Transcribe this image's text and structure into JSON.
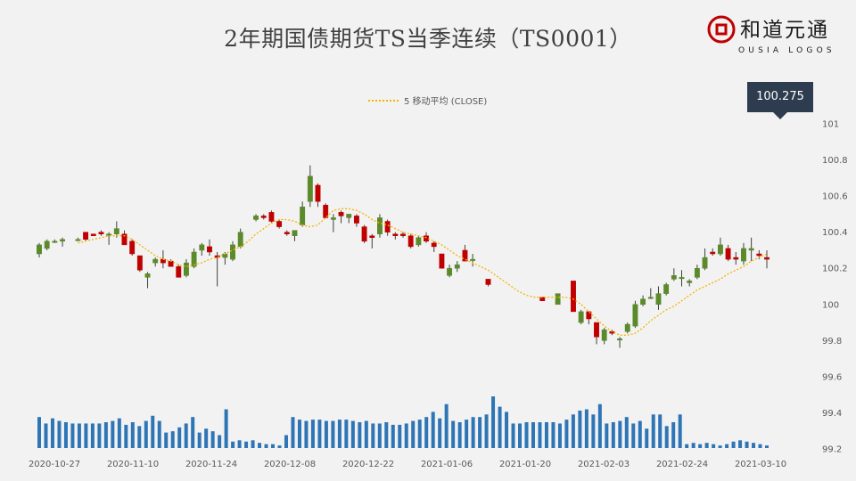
{
  "header": {
    "title": "2年期国债期货TS当季连续（TS0001）",
    "logo_text_cn": "和道元通",
    "logo_text_en": "OUSIA LOGOS"
  },
  "last_price": "100.275",
  "chart_data": {
    "type": "candlestick",
    "legend": [
      {
        "name": "5 移动平均 (CLOSE)",
        "color": "#f5b400",
        "style": "dotted"
      }
    ],
    "up_color": "#5a8a2a",
    "down_color": "#c00000",
    "volume_color": "#2e75b6",
    "yticks": [
      "101",
      "100.8",
      "100.6",
      "100.4",
      "100.2",
      "100",
      "99.8",
      "99.6",
      "99.4",
      "99.2"
    ],
    "ylim": [
      99.2,
      101
    ],
    "xticks": [
      "2020-10-27",
      "2020-11-10",
      "2020-11-24",
      "2020-12-08",
      "2020-12-22",
      "2021-01-06",
      "2021-01-20",
      "2021-02-03",
      "2021-02-24",
      "2021-03-10"
    ],
    "candles": [
      {
        "o": 100.28,
        "h": 100.34,
        "l": 100.26,
        "c": 100.33
      },
      {
        "o": 100.31,
        "h": 100.36,
        "l": 100.3,
        "c": 100.35
      },
      {
        "o": 100.35,
        "h": 100.36,
        "l": 100.34,
        "c": 100.35
      },
      {
        "o": 100.35,
        "h": 100.37,
        "l": 100.32,
        "c": 100.36
      },
      null,
      {
        "o": 100.36,
        "h": 100.37,
        "l": 100.35,
        "c": 100.36
      },
      {
        "o": 100.4,
        "h": 100.4,
        "l": 100.35,
        "c": 100.36
      },
      {
        "o": 100.39,
        "h": 100.39,
        "l": 100.38,
        "c": 100.38
      },
      {
        "o": 100.4,
        "h": 100.41,
        "l": 100.38,
        "c": 100.39
      },
      {
        "o": 100.39,
        "h": 100.4,
        "l": 100.33,
        "c": 100.39
      },
      {
        "o": 100.39,
        "h": 100.46,
        "l": 100.37,
        "c": 100.42
      },
      {
        "o": 100.39,
        "h": 100.41,
        "l": 100.33,
        "c": 100.33
      },
      {
        "o": 100.35,
        "h": 100.36,
        "l": 100.27,
        "c": 100.28
      },
      {
        "o": 100.27,
        "h": 100.27,
        "l": 100.18,
        "c": 100.19
      },
      {
        "o": 100.15,
        "h": 100.18,
        "l": 100.09,
        "c": 100.17
      },
      {
        "o": 100.23,
        "h": 100.26,
        "l": 100.21,
        "c": 100.25
      },
      {
        "o": 100.25,
        "h": 100.3,
        "l": 100.2,
        "c": 100.23
      },
      {
        "o": 100.24,
        "h": 100.25,
        "l": 100.21,
        "c": 100.21
      },
      {
        "o": 100.21,
        "h": 100.22,
        "l": 100.15,
        "c": 100.15
      },
      {
        "o": 100.16,
        "h": 100.25,
        "l": 100.15,
        "c": 100.23
      },
      {
        "o": 100.21,
        "h": 100.31,
        "l": 100.2,
        "c": 100.29
      },
      {
        "o": 100.3,
        "h": 100.34,
        "l": 100.27,
        "c": 100.33
      },
      {
        "o": 100.32,
        "h": 100.36,
        "l": 100.27,
        "c": 100.29
      },
      {
        "o": 100.27,
        "h": 100.29,
        "l": 100.1,
        "c": 100.26
      },
      {
        "o": 100.26,
        "h": 100.29,
        "l": 100.22,
        "c": 100.28
      },
      {
        "o": 100.25,
        "h": 100.35,
        "l": 100.24,
        "c": 100.33
      },
      {
        "o": 100.32,
        "h": 100.42,
        "l": 100.31,
        "c": 100.4
      },
      null,
      {
        "o": 100.47,
        "h": 100.5,
        "l": 100.46,
        "c": 100.49
      },
      {
        "o": 100.49,
        "h": 100.5,
        "l": 100.47,
        "c": 100.48
      },
      {
        "o": 100.51,
        "h": 100.52,
        "l": 100.45,
        "c": 100.46
      },
      {
        "o": 100.46,
        "h": 100.47,
        "l": 100.42,
        "c": 100.43
      },
      {
        "o": 100.4,
        "h": 100.41,
        "l": 100.38,
        "c": 100.39
      },
      {
        "o": 100.38,
        "h": 100.41,
        "l": 100.35,
        "c": 100.41
      },
      {
        "o": 100.44,
        "h": 100.57,
        "l": 100.43,
        "c": 100.54
      },
      {
        "o": 100.57,
        "h": 100.77,
        "l": 100.54,
        "c": 100.71
      },
      {
        "o": 100.66,
        "h": 100.67,
        "l": 100.54,
        "c": 100.57
      },
      {
        "o": 100.55,
        "h": 100.56,
        "l": 100.49,
        "c": 100.48
      },
      {
        "o": 100.47,
        "h": 100.5,
        "l": 100.4,
        "c": 100.48
      },
      {
        "o": 100.51,
        "h": 100.52,
        "l": 100.45,
        "c": 100.49
      },
      {
        "o": 100.48,
        "h": 100.5,
        "l": 100.45,
        "c": 100.5
      },
      {
        "o": 100.49,
        "h": 100.5,
        "l": 100.43,
        "c": 100.45
      },
      {
        "o": 100.43,
        "h": 100.44,
        "l": 100.34,
        "c": 100.35
      },
      {
        "o": 100.38,
        "h": 100.39,
        "l": 100.31,
        "c": 100.37
      },
      {
        "o": 100.39,
        "h": 100.5,
        "l": 100.37,
        "c": 100.48
      },
      {
        "o": 100.46,
        "h": 100.47,
        "l": 100.38,
        "c": 100.4
      },
      {
        "o": 100.39,
        "h": 100.4,
        "l": 100.36,
        "c": 100.38
      },
      {
        "o": 100.39,
        "h": 100.4,
        "l": 100.37,
        "c": 100.38
      },
      {
        "o": 100.38,
        "h": 100.39,
        "l": 100.31,
        "c": 100.32
      },
      {
        "o": 100.33,
        "h": 100.38,
        "l": 100.32,
        "c": 100.37
      },
      {
        "o": 100.38,
        "h": 100.4,
        "l": 100.34,
        "c": 100.35
      },
      {
        "o": 100.34,
        "h": 100.35,
        "l": 100.29,
        "c": 100.32
      },
      {
        "o": 100.28,
        "h": 100.28,
        "l": 100.2,
        "c": 100.2
      },
      {
        "o": 100.16,
        "h": 100.22,
        "l": 100.15,
        "c": 100.2
      },
      {
        "o": 100.2,
        "h": 100.24,
        "l": 100.18,
        "c": 100.22
      },
      {
        "o": 100.3,
        "h": 100.33,
        "l": 100.24,
        "c": 100.24
      },
      {
        "o": 100.25,
        "h": 100.28,
        "l": 100.21,
        "c": 100.25
      },
      null,
      {
        "o": 100.14,
        "h": 100.14,
        "l": 100.1,
        "c": 100.11
      },
      null,
      null,
      null,
      null,
      null,
      null,
      {
        "o": 100.04,
        "h": 100.04,
        "l": 100.02,
        "c": 100.02
      },
      null,
      {
        "o": 100.0,
        "h": 100.06,
        "l": 100.0,
        "c": 100.06
      },
      null,
      {
        "o": 100.13,
        "h": 100.13,
        "l": 99.96,
        "c": 99.96
      },
      {
        "o": 99.9,
        "h": 99.97,
        "l": 99.89,
        "c": 99.96
      },
      {
        "o": 99.96,
        "h": 99.96,
        "l": 99.89,
        "c": 99.92
      },
      {
        "o": 99.9,
        "h": 99.9,
        "l": 99.78,
        "c": 99.82
      },
      {
        "o": 99.8,
        "h": 99.87,
        "l": 99.78,
        "c": 99.86
      },
      {
        "o": 99.85,
        "h": 99.86,
        "l": 99.83,
        "c": 99.84
      },
      {
        "o": 99.81,
        "h": 99.82,
        "l": 99.76,
        "c": 99.81
      },
      {
        "o": 99.85,
        "h": 99.9,
        "l": 99.84,
        "c": 99.89
      },
      {
        "o": 99.88,
        "h": 100.02,
        "l": 99.87,
        "c": 100.0
      },
      {
        "o": 100.0,
        "h": 100.05,
        "l": 99.99,
        "c": 100.03
      },
      {
        "o": 100.04,
        "h": 100.09,
        "l": 100.03,
        "c": 100.04
      },
      {
        "o": 100.0,
        "h": 100.1,
        "l": 99.97,
        "c": 100.06
      },
      {
        "o": 100.06,
        "h": 100.12,
        "l": 100.05,
        "c": 100.11
      },
      {
        "o": 100.14,
        "h": 100.2,
        "l": 100.13,
        "c": 100.16
      },
      {
        "o": 100.15,
        "h": 100.19,
        "l": 100.1,
        "c": 100.15
      },
      {
        "o": 100.12,
        "h": 100.14,
        "l": 100.1,
        "c": 100.13
      },
      {
        "o": 100.15,
        "h": 100.22,
        "l": 100.14,
        "c": 100.2
      },
      {
        "o": 100.2,
        "h": 100.31,
        "l": 100.19,
        "c": 100.26
      },
      {
        "o": 100.29,
        "h": 100.31,
        "l": 100.27,
        "c": 100.28
      },
      {
        "o": 100.28,
        "h": 100.37,
        "l": 100.27,
        "c": 100.33
      },
      {
        "o": 100.31,
        "h": 100.33,
        "l": 100.24,
        "c": 100.25
      },
      {
        "o": 100.26,
        "h": 100.29,
        "l": 100.22,
        "c": 100.25
      },
      {
        "o": 100.24,
        "h": 100.34,
        "l": 100.22,
        "c": 100.31
      },
      {
        "o": 100.3,
        "h": 100.37,
        "l": 100.24,
        "c": 100.31
      },
      {
        "o": 100.28,
        "h": 100.3,
        "l": 100.25,
        "c": 100.27
      },
      {
        "o": 100.26,
        "h": 100.3,
        "l": 100.2,
        "c": 100.25
      }
    ],
    "ma5": [
      null,
      null,
      null,
      null,
      null,
      100.34,
      100.35,
      100.36,
      100.37,
      100.38,
      100.38,
      100.38,
      100.36,
      100.33,
      100.3,
      100.27,
      100.25,
      100.24,
      100.22,
      100.21,
      100.22,
      100.23,
      100.25,
      100.26,
      100.28,
      100.3,
      100.32,
      100.35,
      100.39,
      100.42,
      100.45,
      100.47,
      100.47,
      100.46,
      100.44,
      100.43,
      100.44,
      100.48,
      100.52,
      100.53,
      100.53,
      100.52,
      100.5,
      100.47,
      100.45,
      100.44,
      100.42,
      100.4,
      100.39,
      100.38,
      100.37,
      100.35,
      100.33,
      100.3,
      100.27,
      100.25,
      100.23,
      100.21,
      100.19,
      100.16,
      100.13,
      100.1,
      100.07,
      100.05,
      100.04,
      100.04,
      100.04,
      100.04,
      100.04,
      100.03,
      100.0,
      99.96,
      99.92,
      99.88,
      99.85,
      99.83,
      99.83,
      99.84,
      99.87,
      99.91,
      99.94,
      99.97,
      99.99,
      100.02,
      100.05,
      100.08,
      100.1,
      100.12,
      100.14,
      100.17,
      100.19,
      100.21,
      100.24,
      100.26,
      100.28
    ],
    "volume_scale_note": "",
    "volume": [
      48,
      38,
      46,
      42,
      40,
      38,
      38,
      38,
      38,
      38,
      40,
      42,
      46,
      36,
      40,
      34,
      42,
      50,
      42,
      24,
      26,
      32,
      38,
      48,
      24,
      30,
      26,
      20,
      60,
      10,
      12,
      10,
      12,
      8,
      6,
      6,
      4,
      20,
      48,
      44,
      42,
      44,
      44,
      42,
      42,
      44,
      44,
      42,
      40,
      42,
      38,
      38,
      40,
      36,
      36,
      38,
      42,
      44,
      48,
      56,
      46,
      68,
      42,
      40,
      44,
      48,
      48,
      52,
      80,
      64,
      56,
      38,
      38,
      40,
      40,
      40,
      40,
      40,
      38,
      44,
      52,
      58,
      60,
      52,
      68,
      38,
      40,
      42,
      48,
      38,
      42,
      30,
      52,
      52,
      34,
      40,
      52,
      6,
      8,
      6,
      8,
      6,
      4,
      6,
      10,
      12,
      10,
      8,
      6,
      4
    ]
  }
}
